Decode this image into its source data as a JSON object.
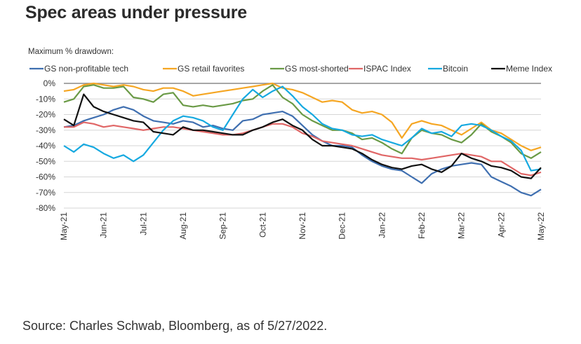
{
  "title": "Spec areas under pressure",
  "source": "Source: Charles Schwab, Bloomberg, as of 5/27/2022.",
  "chart_data": {
    "type": "line",
    "title": "Spec areas under pressure",
    "ylabel": "Maximum % drawdown:",
    "xlabel": "",
    "ylim": [
      -80,
      0
    ],
    "yticks": [
      0,
      -10,
      -20,
      -30,
      -40,
      -50,
      -60,
      -70,
      -80
    ],
    "ytick_labels": [
      "0%",
      "-10%",
      "-20%",
      "-30%",
      "-40%",
      "-50%",
      "-60%",
      "-70%",
      "-80%"
    ],
    "xticks": [
      "May-21",
      "Jun-21",
      "Jul-21",
      "Aug-21",
      "Sep-21",
      "Oct-21",
      "Nov-21",
      "Dec-21",
      "Jan-22",
      "Feb-22",
      "Mar-22",
      "Apr-22",
      "May-22"
    ],
    "grid": true,
    "legend_position": "top",
    "x": [
      0,
      0.25,
      0.5,
      0.75,
      1,
      1.25,
      1.5,
      1.75,
      2,
      2.25,
      2.5,
      2.75,
      3,
      3.25,
      3.5,
      3.75,
      4,
      4.25,
      4.5,
      4.75,
      5,
      5.25,
      5.5,
      5.75,
      6,
      6.25,
      6.5,
      6.75,
      7,
      7.25,
      7.5,
      7.75,
      8,
      8.25,
      8.5,
      8.75,
      9,
      9.25,
      9.5,
      9.75,
      10,
      10.25,
      10.5,
      10.75,
      11,
      11.25,
      11.5,
      11.75,
      12
    ],
    "series": [
      {
        "name": "GS non-profitable tech",
        "color": "#3f6fb0",
        "values": [
          -28,
          -27,
          -24,
          -22,
          -20,
          -17,
          -15,
          -17,
          -21,
          -24,
          -25,
          -26,
          -24,
          -25,
          -28,
          -27,
          -29,
          -30,
          -24,
          -23,
          -20,
          -19,
          -18,
          -21,
          -27,
          -33,
          -37,
          -40,
          -40,
          -41,
          -46,
          -50,
          -53,
          -55,
          -56,
          -60,
          -64,
          -58,
          -55,
          -53,
          -52,
          -51,
          -52,
          -60,
          -63,
          -66,
          -70,
          -72,
          -68
        ]
      },
      {
        "name": "GS retail favorites",
        "color": "#f5a623",
        "values": [
          -5,
          -4,
          -1,
          0,
          -1,
          -2,
          -1,
          -2,
          -4,
          -5,
          -3,
          -3,
          -5,
          -8,
          -7,
          -6,
          -5,
          -4,
          -3,
          -2,
          -1,
          0,
          -3,
          -4,
          -6,
          -9,
          -12,
          -11,
          -12,
          -17,
          -19,
          -18,
          -20,
          -25,
          -35,
          -26,
          -24,
          -26,
          -27,
          -30,
          -33,
          -29,
          -25,
          -30,
          -32,
          -36,
          -40,
          -43,
          -41
        ]
      },
      {
        "name": "GS most-shorted",
        "color": "#6a9a46",
        "values": [
          -12,
          -10,
          -2,
          -1,
          -3,
          -3,
          -2,
          -9,
          -10,
          -12,
          -7,
          -6,
          -14,
          -15,
          -14,
          -15,
          -14,
          -13,
          -11,
          -10,
          -5,
          -1,
          -9,
          -13,
          -20,
          -24,
          -27,
          -30,
          -30,
          -32,
          -36,
          -35,
          -38,
          -42,
          -45,
          -35,
          -30,
          -32,
          -33,
          -36,
          -38,
          -33,
          -26,
          -31,
          -34,
          -38,
          -45,
          -48,
          -44
        ]
      },
      {
        "name": "ISPAC Index",
        "color": "#e06666",
        "values": [
          -28,
          -28,
          -25,
          -26,
          -28,
          -27,
          -28,
          -29,
          -30,
          -29,
          -28,
          -28,
          -29,
          -30,
          -31,
          -32,
          -33,
          -33,
          -32,
          -30,
          -28,
          -26,
          -26,
          -28,
          -32,
          -34,
          -37,
          -38,
          -39,
          -40,
          -42,
          -44,
          -46,
          -47,
          -48,
          -48,
          -49,
          -48,
          -47,
          -46,
          -45,
          -46,
          -47,
          -50,
          -50,
          -54,
          -58,
          -59,
          -57
        ]
      },
      {
        "name": "Bitcoin",
        "color": "#16a9e0",
        "values": [
          -40,
          -44,
          -39,
          -41,
          -45,
          -48,
          -46,
          -50,
          -46,
          -38,
          -30,
          -24,
          -21,
          -22,
          -24,
          -28,
          -30,
          -20,
          -10,
          -4,
          -9,
          -5,
          -2,
          -8,
          -15,
          -20,
          -26,
          -29,
          -30,
          -33,
          -34,
          -33,
          -36,
          -38,
          -40,
          -35,
          -29,
          -32,
          -31,
          -34,
          -27,
          -26,
          -27,
          -30,
          -34,
          -37,
          -43,
          -56,
          -55
        ]
      },
      {
        "name": "Meme Index",
        "color": "#111111",
        "values": [
          -23,
          -27,
          -7,
          -15,
          -18,
          -20,
          -22,
          -24,
          -25,
          -31,
          -32,
          -33,
          -28,
          -30,
          -30,
          -31,
          -32,
          -33,
          -33,
          -30,
          -28,
          -25,
          -23,
          -27,
          -30,
          -36,
          -40,
          -40,
          -41,
          -42,
          -45,
          -49,
          -52,
          -54,
          -55,
          -53,
          -52,
          -55,
          -57,
          -53,
          -45,
          -48,
          -50,
          -53,
          -54,
          -56,
          -60,
          -61,
          -54
        ]
      }
    ]
  }
}
